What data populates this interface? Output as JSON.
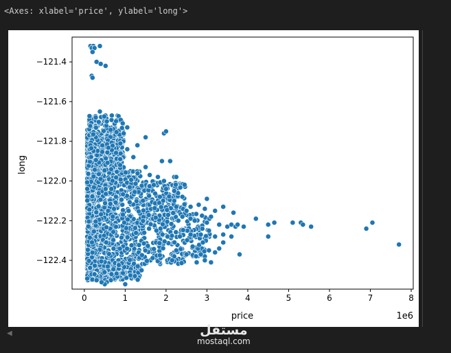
{
  "output_header": "<Axes: xlabel='price', ylabel='long'>",
  "watermark": {
    "arabic": "مستقل",
    "latin": "mostaql.com"
  },
  "chart_data": {
    "type": "scatter",
    "xlabel": "price",
    "ylabel": "long",
    "x_offset_label": "1e6",
    "x_unit_multiplier": 1000000,
    "xlim": [
      -0.3,
      8.05
    ],
    "ylim": [
      -122.545,
      -121.275
    ],
    "xticks": [
      0,
      1,
      2,
      3,
      4,
      5,
      6,
      7,
      8
    ],
    "xtick_labels": [
      "0",
      "1",
      "2",
      "3",
      "4",
      "5",
      "6",
      "7",
      "8"
    ],
    "yticks": [
      -121.4,
      -121.6,
      -121.8,
      -122.0,
      -122.2,
      -122.4
    ],
    "ytick_labels": [
      "−121.4",
      "−121.6",
      "−121.8",
      "−122.0",
      "−122.2",
      "−122.4"
    ],
    "marker_color": "#1f77b4",
    "marker_edge_color": "#ffffff",
    "points": [
      [
        0.15,
        -121.32
      ],
      [
        0.22,
        -121.32
      ],
      [
        0.18,
        -121.33
      ],
      [
        0.25,
        -121.33
      ],
      [
        0.38,
        -121.32
      ],
      [
        0.2,
        -121.35
      ],
      [
        0.3,
        -121.4
      ],
      [
        0.4,
        -121.41
      ],
      [
        0.52,
        -121.42
      ],
      [
        0.18,
        -121.47
      ],
      [
        0.2,
        -121.48
      ],
      [
        0.38,
        -121.65
      ],
      [
        0.28,
        -121.68
      ],
      [
        0.55,
        -121.7
      ],
      [
        1.05,
        -121.73
      ],
      [
        1.95,
        -121.76
      ],
      [
        2.0,
        -121.75
      ],
      [
        1.5,
        -121.78
      ],
      [
        1.3,
        -121.82
      ],
      [
        1.05,
        -121.84
      ],
      [
        1.2,
        -121.88
      ],
      [
        2.1,
        -121.9
      ],
      [
        1.9,
        -121.9
      ],
      [
        1.5,
        -121.93
      ],
      [
        1.6,
        -121.97
      ],
      [
        1.8,
        -121.98
      ],
      [
        2.2,
        -121.98
      ],
      [
        2.25,
        -121.98
      ],
      [
        1.95,
        -122.0
      ],
      [
        1.7,
        -122.02
      ],
      [
        2.0,
        -122.04
      ],
      [
        2.2,
        -122.05
      ],
      [
        1.85,
        -122.08
      ],
      [
        2.4,
        -122.08
      ],
      [
        2.2,
        -122.1
      ],
      [
        2.25,
        -122.13
      ],
      [
        2.6,
        -122.13
      ],
      [
        3.0,
        -122.09
      ],
      [
        2.8,
        -122.12
      ],
      [
        2.95,
        -122.14
      ],
      [
        3.2,
        -122.15
      ],
      [
        3.4,
        -122.13
      ],
      [
        3.65,
        -122.16
      ],
      [
        3.1,
        -122.18
      ],
      [
        2.5,
        -122.15
      ],
      [
        2.4,
        -122.18
      ],
      [
        2.6,
        -122.19
      ],
      [
        2.3,
        -122.2
      ],
      [
        2.7,
        -122.2
      ],
      [
        3.0,
        -122.21
      ],
      [
        3.3,
        -122.22
      ],
      [
        3.5,
        -122.23
      ],
      [
        3.6,
        -122.22
      ],
      [
        3.7,
        -122.23
      ],
      [
        3.75,
        -122.22
      ],
      [
        3.9,
        -122.23
      ],
      [
        4.2,
        -122.19
      ],
      [
        4.5,
        -122.22
      ],
      [
        4.65,
        -122.21
      ],
      [
        5.1,
        -122.21
      ],
      [
        5.3,
        -122.21
      ],
      [
        5.35,
        -122.22
      ],
      [
        5.55,
        -122.23
      ],
      [
        6.9,
        -122.24
      ],
      [
        7.05,
        -122.21
      ],
      [
        7.7,
        -122.32
      ],
      [
        4.5,
        -122.28
      ],
      [
        3.6,
        -122.28
      ],
      [
        3.4,
        -122.27
      ],
      [
        3.2,
        -122.28
      ],
      [
        3.05,
        -122.25
      ],
      [
        2.85,
        -122.27
      ],
      [
        2.6,
        -122.27
      ],
      [
        2.65,
        -122.33
      ],
      [
        2.9,
        -122.31
      ],
      [
        3.4,
        -122.31
      ],
      [
        3.3,
        -122.34
      ],
      [
        3.2,
        -122.36
      ],
      [
        3.05,
        -122.35
      ],
      [
        2.95,
        -122.38
      ],
      [
        2.85,
        -122.37
      ],
      [
        2.5,
        -122.37
      ],
      [
        2.25,
        -122.35
      ],
      [
        2.2,
        -122.38
      ],
      [
        2.15,
        -122.4
      ],
      [
        3.8,
        -122.37
      ],
      [
        2.95,
        -122.4
      ],
      [
        3.1,
        -122.41
      ],
      [
        2.75,
        -122.41
      ],
      [
        1.4,
        -122.45
      ],
      [
        1.0,
        -122.52
      ],
      [
        0.65,
        -122.5
      ],
      [
        0.55,
        -122.51
      ],
      [
        0.5,
        -122.52
      ],
      [
        0.42,
        -122.51
      ],
      [
        0.3,
        -122.5
      ],
      [
        0.25,
        -122.47
      ]
    ]
  }
}
